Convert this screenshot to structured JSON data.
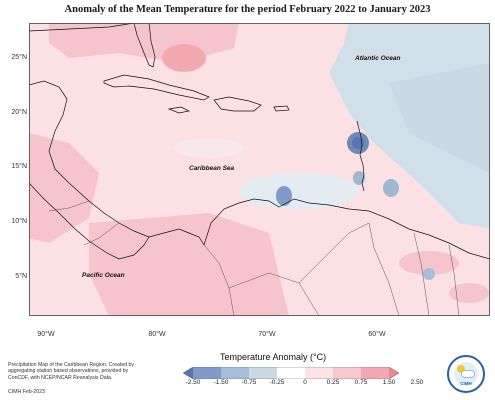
{
  "title": "Anomaly of the Mean Temperature for the period February 2022 to January 2023",
  "latitude_labels": [
    "25°N",
    "20°N",
    "15°N",
    "10°N",
    "5°N"
  ],
  "longitude_labels": [
    "90°W",
    "80°W",
    "70°W",
    "60°W"
  ],
  "place_labels": {
    "atlantic": "Atlantic Ocean",
    "caribbean": "Caribbean Sea",
    "pacific": "Pacific Ocean"
  },
  "footnote": "Precipitation Map of the Caribbean Region. Created by aggregating station based observations, provided by ConCDF, with NCEP/NCAR Reanalysis Data.",
  "footnote_small": "CIMH Feb-2023",
  "legend": {
    "title": "Temperature Anomaly (°C)",
    "ticks": [
      "-2.50",
      "-1.50",
      "-0.75",
      "-0.25",
      "0",
      "0.25",
      "0.75",
      "1.50",
      "2.50"
    ],
    "colors": [
      "#5a73b5",
      "#8299cc",
      "#a8bcdb",
      "#c9d9e6",
      "#ffffff",
      "#fbe3e6",
      "#f7c9cf",
      "#f3a9b2",
      "#f08591"
    ]
  },
  "logo_text": "CIMH",
  "colors": {
    "warm_light": "#fbe0e4",
    "warm_medium": "#f6c4cc",
    "cool_light": "#cfe0e8",
    "cool_medium": "#9fb8d0",
    "cool_dark": "#6d8ab5",
    "coast": "#111111"
  }
}
